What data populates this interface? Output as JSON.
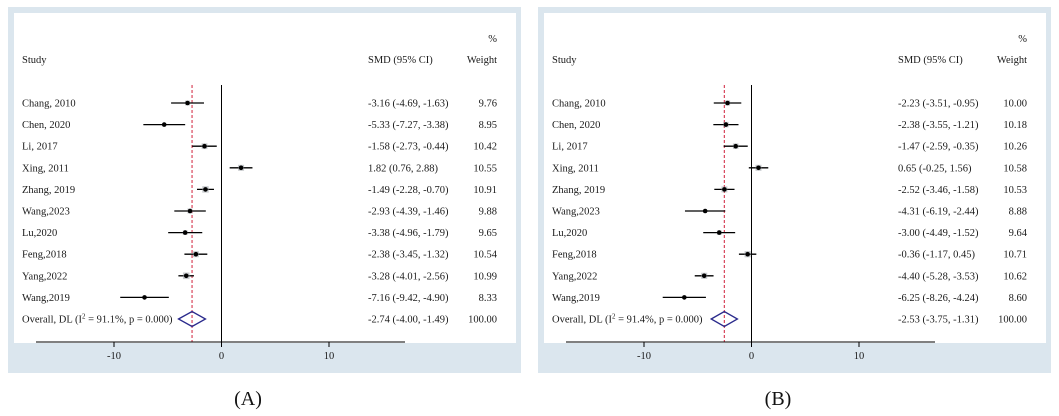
{
  "colors": {
    "outer_bg": "#dbe6ee",
    "inner_bg": "#ffffff",
    "ci_color": "#000000",
    "overall_line": "#d0203a",
    "diamond": "#2a2a8c"
  },
  "panels": [
    {
      "caption": "(A)",
      "header": {
        "study": "Study",
        "smd": "SMD (95% CI)",
        "pct": "%",
        "weight": "Weight"
      },
      "axis_ticks": [
        {
          "value": -10,
          "label": "-10"
        },
        {
          "value": 0,
          "label": "0"
        },
        {
          "value": 10,
          "label": "10"
        }
      ],
      "xlim": [
        -18,
        18
      ],
      "studies": [
        {
          "name": "Chang, 2010",
          "smd": -3.16,
          "lo": -4.69,
          "hi": -1.63,
          "ci_text": "-3.16 (-4.69, -1.63)",
          "weight": "9.76"
        },
        {
          "name": "Chen, 2020",
          "smd": -5.33,
          "lo": -7.27,
          "hi": -3.38,
          "ci_text": "-5.33 (-7.27, -3.38)",
          "weight": "8.95"
        },
        {
          "name": "Li, 2017",
          "smd": -1.58,
          "lo": -2.73,
          "hi": -0.44,
          "ci_text": "-1.58 (-2.73, -0.44)",
          "weight": "10.42"
        },
        {
          "name": "Xing, 2011",
          "smd": 1.82,
          "lo": 0.76,
          "hi": 2.88,
          "ci_text": "1.82 (0.76, 2.88)",
          "weight": "10.55"
        },
        {
          "name": "Zhang, 2019",
          "smd": -1.49,
          "lo": -2.28,
          "hi": -0.7,
          "ci_text": "-1.49 (-2.28, -0.70)",
          "weight": "10.91"
        },
        {
          "name": "Wang,2023",
          "smd": -2.93,
          "lo": -4.39,
          "hi": -1.46,
          "ci_text": "-2.93 (-4.39, -1.46)",
          "weight": "9.88"
        },
        {
          "name": "Lu,2020",
          "smd": -3.38,
          "lo": -4.96,
          "hi": -1.79,
          "ci_text": "-3.38 (-4.96, -1.79)",
          "weight": "9.65"
        },
        {
          "name": "Feng,2018",
          "smd": -2.38,
          "lo": -3.45,
          "hi": -1.32,
          "ci_text": "-2.38 (-3.45, -1.32)",
          "weight": "10.54"
        },
        {
          "name": "Yang,2022",
          "smd": -3.28,
          "lo": -4.01,
          "hi": -2.56,
          "ci_text": "-3.28 (-4.01, -2.56)",
          "weight": "10.99"
        },
        {
          "name": "Wang,2019",
          "smd": -7.16,
          "lo": -9.42,
          "hi": -4.9,
          "ci_text": "-7.16 (-9.42, -4.90)",
          "weight": "8.33"
        }
      ],
      "overall": {
        "label_prefix": "Overall, DL (I",
        "sup": "2",
        "label_suffix": " = 91.1%, p = 0.000)",
        "smd": -2.74,
        "lo": -4.0,
        "hi": -1.49,
        "ci_text": "-2.74 (-4.00, -1.49)",
        "weight": "100.00"
      }
    },
    {
      "caption": "(B)",
      "header": {
        "study": "Study",
        "smd": "SMD (95% CI)",
        "pct": "%",
        "weight": "Weight"
      },
      "axis_ticks": [
        {
          "value": -10,
          "label": "-10"
        },
        {
          "value": 0,
          "label": "0"
        },
        {
          "value": 10,
          "label": "10"
        }
      ],
      "xlim": [
        -18,
        18
      ],
      "studies": [
        {
          "name": "Chang, 2010",
          "smd": -2.23,
          "lo": -3.51,
          "hi": -0.95,
          "ci_text": "-2.23 (-3.51, -0.95)",
          "weight": "10.00"
        },
        {
          "name": "Chen, 2020",
          "smd": -2.38,
          "lo": -3.55,
          "hi": -1.21,
          "ci_text": "-2.38 (-3.55, -1.21)",
          "weight": "10.18"
        },
        {
          "name": "Li, 2017",
          "smd": -1.47,
          "lo": -2.59,
          "hi": -0.35,
          "ci_text": "-1.47 (-2.59, -0.35)",
          "weight": "10.26"
        },
        {
          "name": "Xing, 2011",
          "smd": 0.65,
          "lo": -0.25,
          "hi": 1.56,
          "ci_text": "0.65 (-0.25, 1.56)",
          "weight": "10.58"
        },
        {
          "name": "Zhang, 2019",
          "smd": -2.52,
          "lo": -3.46,
          "hi": -1.58,
          "ci_text": "-2.52 (-3.46, -1.58)",
          "weight": "10.53"
        },
        {
          "name": "Wang,2023",
          "smd": -4.31,
          "lo": -6.19,
          "hi": -2.44,
          "ci_text": "-4.31 (-6.19, -2.44)",
          "weight": "8.88"
        },
        {
          "name": "Lu,2020",
          "smd": -3.0,
          "lo": -4.49,
          "hi": -1.52,
          "ci_text": "-3.00 (-4.49, -1.52)",
          "weight": "9.64"
        },
        {
          "name": "Feng,2018",
          "smd": -0.36,
          "lo": -1.17,
          "hi": 0.45,
          "ci_text": "-0.36 (-1.17, 0.45)",
          "weight": "10.71"
        },
        {
          "name": "Yang,2022",
          "smd": -4.4,
          "lo": -5.28,
          "hi": -3.53,
          "ci_text": "-4.40 (-5.28, -3.53)",
          "weight": "10.62"
        },
        {
          "name": "Wang,2019",
          "smd": -6.25,
          "lo": -8.26,
          "hi": -4.24,
          "ci_text": "-6.25 (-8.26, -4.24)",
          "weight": "8.60"
        }
      ],
      "overall": {
        "label_prefix": "Overall, DL (I",
        "sup": "2",
        "label_suffix": " = 91.4%, p = 0.000)",
        "smd": -2.53,
        "lo": -3.75,
        "hi": -1.31,
        "ci_text": "-2.53 (-3.75, -1.31)",
        "weight": "100.00"
      }
    }
  ],
  "chart_data": [
    {
      "type": "forest",
      "title": "(A)",
      "xlabel": "SMD (95% CI)",
      "xlim": [
        -18,
        18
      ],
      "categories": [
        "Chang, 2010",
        "Chen, 2020",
        "Li, 2017",
        "Xing, 2011",
        "Zhang, 2019",
        "Wang,2023",
        "Lu,2020",
        "Feng,2018",
        "Yang,2022",
        "Wang,2019",
        "Overall"
      ],
      "series": [
        {
          "name": "SMD",
          "values": [
            -3.16,
            -5.33,
            -1.58,
            1.82,
            -1.49,
            -2.93,
            -3.38,
            -2.38,
            -3.28,
            -7.16,
            -2.74
          ]
        },
        {
          "name": "CI lower",
          "values": [
            -4.69,
            -7.27,
            -2.73,
            0.76,
            -2.28,
            -4.39,
            -4.96,
            -3.45,
            -4.01,
            -9.42,
            -4.0
          ]
        },
        {
          "name": "CI upper",
          "values": [
            -1.63,
            -3.38,
            -0.44,
            2.88,
            -0.7,
            -1.46,
            -1.79,
            -1.32,
            -2.56,
            -4.9,
            -1.49
          ]
        },
        {
          "name": "Weight %",
          "values": [
            9.76,
            8.95,
            10.42,
            10.55,
            10.91,
            9.88,
            9.65,
            10.54,
            10.99,
            8.33,
            100.0
          ]
        }
      ]
    },
    {
      "type": "forest",
      "title": "(B)",
      "xlabel": "SMD (95% CI)",
      "xlim": [
        -18,
        18
      ],
      "categories": [
        "Chang, 2010",
        "Chen, 2020",
        "Li, 2017",
        "Xing, 2011",
        "Zhang, 2019",
        "Wang,2023",
        "Lu,2020",
        "Feng,2018",
        "Yang,2022",
        "Wang,2019",
        "Overall"
      ],
      "series": [
        {
          "name": "SMD",
          "values": [
            -2.23,
            -2.38,
            -1.47,
            0.65,
            -2.52,
            -4.31,
            -3.0,
            -0.36,
            -4.4,
            -6.25,
            -2.53
          ]
        },
        {
          "name": "CI lower",
          "values": [
            -3.51,
            -3.55,
            -2.59,
            -0.25,
            -3.46,
            -6.19,
            -4.49,
            -1.17,
            -5.28,
            -8.26,
            -3.75
          ]
        },
        {
          "name": "CI upper",
          "values": [
            -0.95,
            -1.21,
            -0.35,
            1.56,
            -1.58,
            -2.44,
            -1.52,
            0.45,
            -3.53,
            -4.24,
            -1.31
          ]
        },
        {
          "name": "Weight %",
          "values": [
            10.0,
            10.18,
            10.26,
            10.58,
            10.53,
            8.88,
            9.64,
            10.71,
            10.62,
            8.6,
            100.0
          ]
        }
      ]
    }
  ]
}
